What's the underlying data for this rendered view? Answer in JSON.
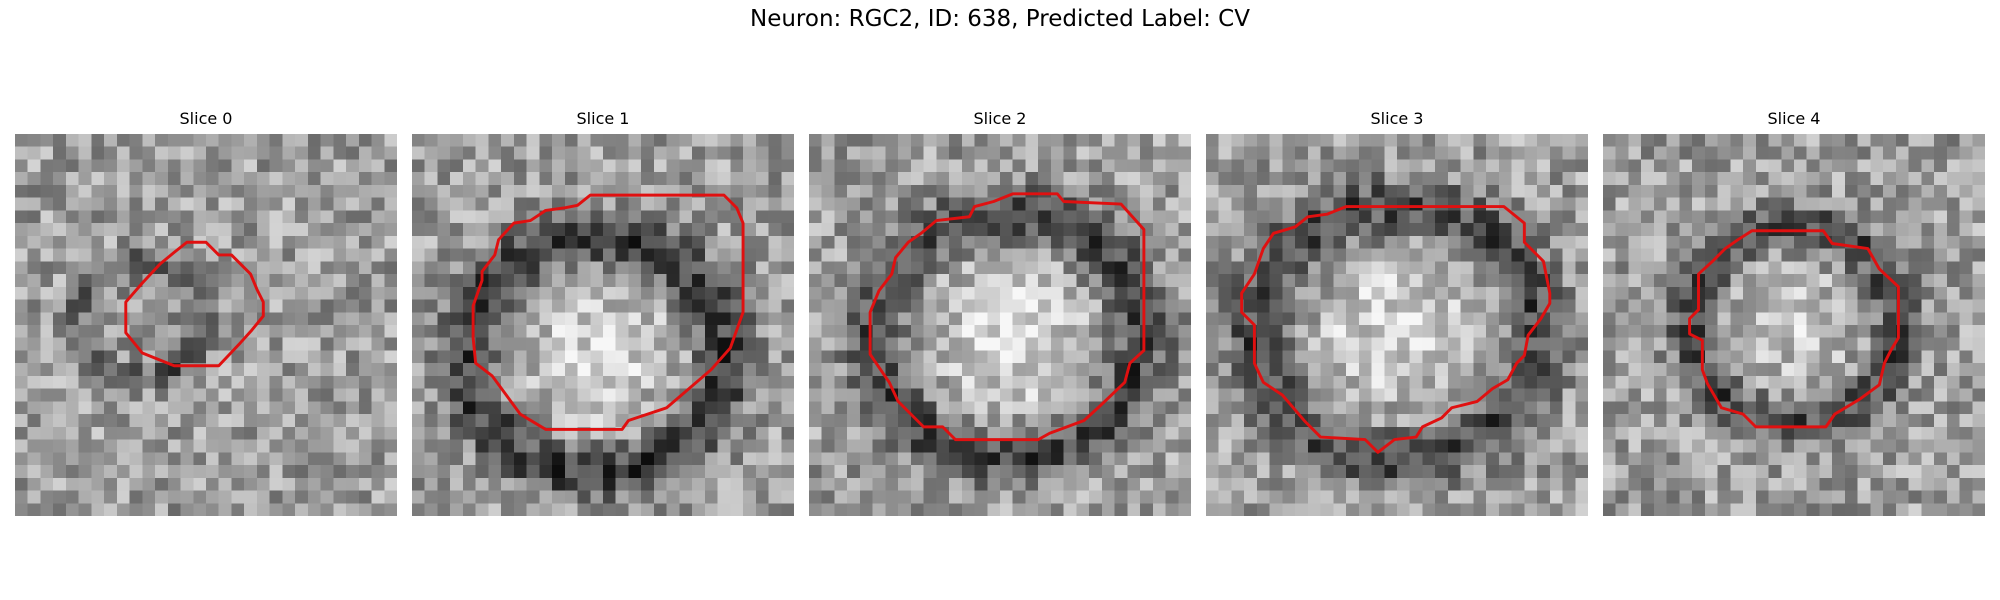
{
  "figure": {
    "title": "Neuron: RGC2, ID: 638, Predicted Label: CV"
  },
  "style": {
    "contour_color": "#e01010",
    "image_colormap": "grayscale"
  },
  "panels": [
    {
      "title": "Slice 0",
      "seed": 11,
      "center": [
        0.33,
        0.49
      ],
      "radius": [
        0.17,
        0.15
      ],
      "ring_strength": 0.3,
      "center_brightness": -0.05
    },
    {
      "title": "Slice 1",
      "seed": 23,
      "center": [
        0.48,
        0.58
      ],
      "radius": [
        0.34,
        0.31
      ],
      "ring_strength": 0.38,
      "center_brightness": 0.3
    },
    {
      "title": "Slice 2",
      "seed": 37,
      "center": [
        0.52,
        0.53
      ],
      "radius": [
        0.35,
        0.32
      ],
      "ring_strength": 0.35,
      "center_brightness": 0.35
    },
    {
      "title": "Slice 3",
      "seed": 51,
      "center": [
        0.5,
        0.52
      ],
      "radius": [
        0.37,
        0.33
      ],
      "ring_strength": 0.34,
      "center_brightness": 0.3
    },
    {
      "title": "Slice 4",
      "seed": 67,
      "center": [
        0.5,
        0.5
      ],
      "radius": [
        0.27,
        0.26
      ],
      "ring_strength": 0.33,
      "center_brightness": 0.25
    }
  ]
}
